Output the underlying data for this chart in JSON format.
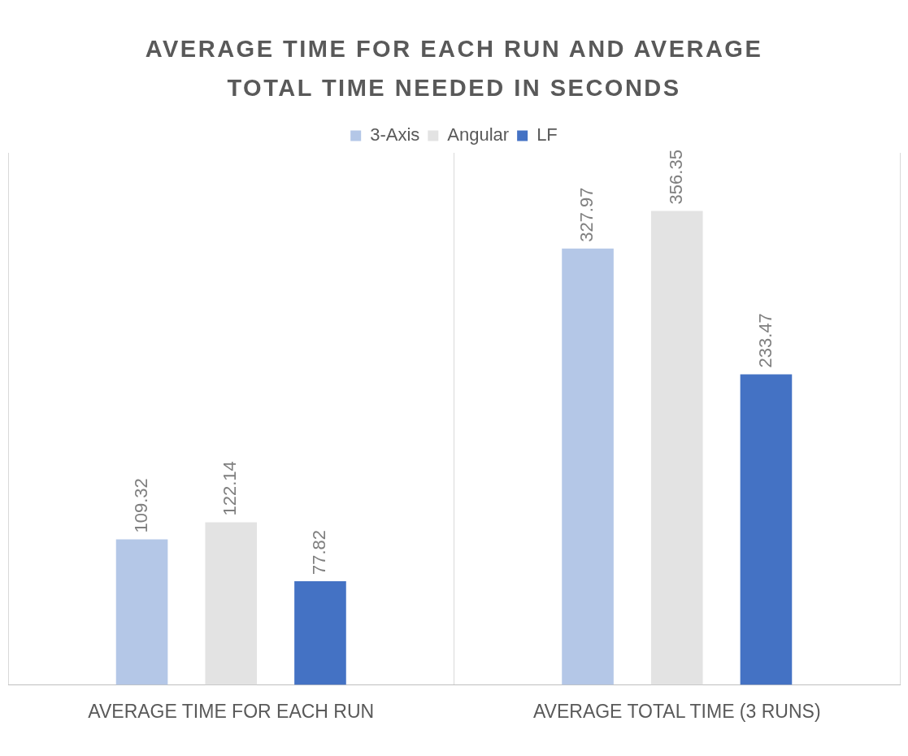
{
  "chart_data": {
    "type": "bar",
    "title": "AVERAGE TIME FOR EACH RUN AND AVERAGE TOTAL TIME NEEDED IN SECONDS",
    "categories": [
      "AVERAGE TIME FOR EACH RUN",
      "AVERAGE TOTAL TIME (3 RUNS)"
    ],
    "series": [
      {
        "name": "3-Axis",
        "color": "#b4c7e7",
        "values": [
          109.32,
          327.97
        ]
      },
      {
        "name": "Angular",
        "color": "#e3e3e3",
        "values": [
          122.14,
          356.35
        ]
      },
      {
        "name": "LF",
        "color": "#4472c4",
        "values": [
          77.82,
          233.47
        ]
      }
    ],
    "data_labels": true,
    "legend": "top",
    "grid": "x"
  }
}
